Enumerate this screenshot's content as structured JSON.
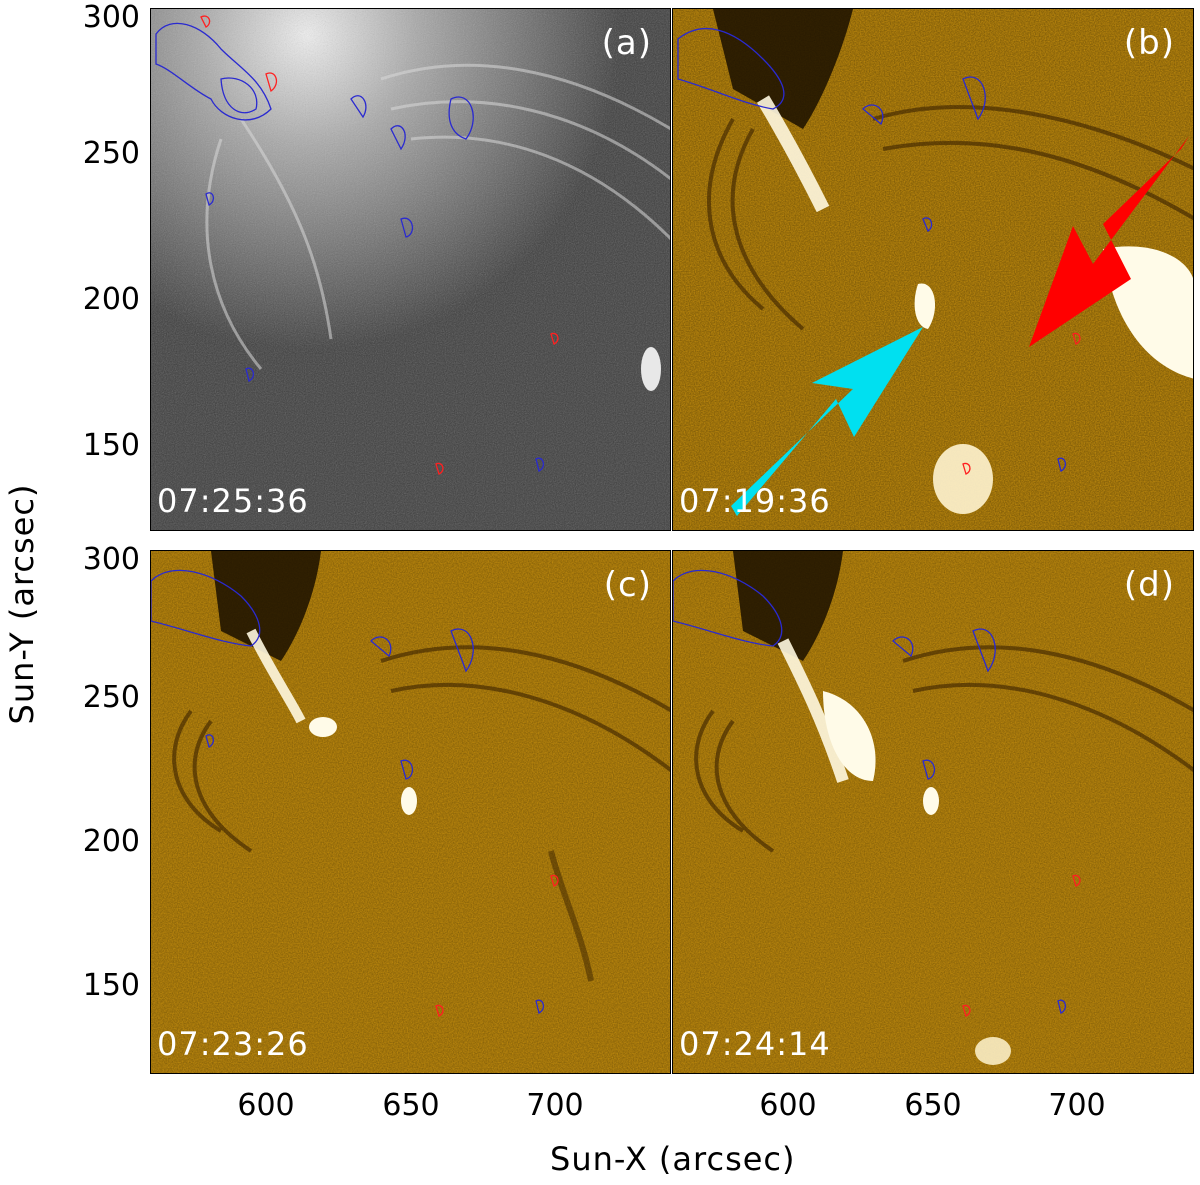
{
  "figure": {
    "ylabel": "Sun-Y (arcsec)",
    "xlabel": "Sun-X (arcsec)",
    "yticks": [
      "300",
      "250",
      "200",
      "150"
    ],
    "xticks": [
      "600",
      "650",
      "700"
    ]
  },
  "panels": [
    {
      "label": "(a)",
      "time": "07:25:36",
      "style": "grayscale",
      "arrows": []
    },
    {
      "label": "(b)",
      "time": "07:19:36",
      "style": "difference",
      "arrows": [
        "cyan-arrow",
        "red-arrow"
      ]
    },
    {
      "label": "(c)",
      "time": "07:23:26",
      "style": "difference",
      "arrows": []
    },
    {
      "label": "(d)",
      "time": "07:24:14",
      "style": "difference",
      "arrows": []
    }
  ],
  "colors": {
    "gray_bg": "#4a4a4a",
    "gold_bg": "#c9910e",
    "cyan_arrow": "#00e0f0",
    "red_arrow": "#ff0000",
    "contour_blue": "#2a2ad0",
    "contour_red": "#ff2020"
  }
}
